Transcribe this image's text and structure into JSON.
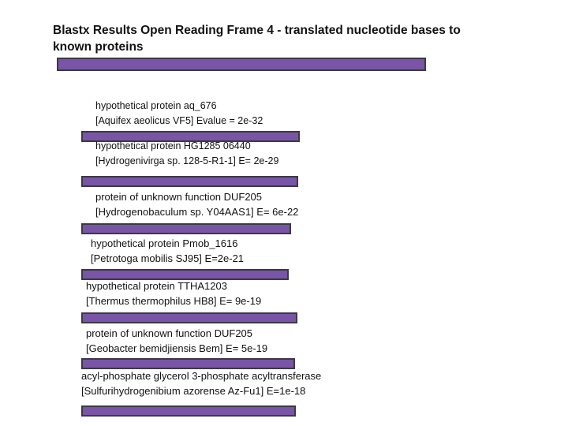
{
  "title": "Blastx Results Open Reading Frame 4 - translated nucleotide bases to known proteins",
  "colors": {
    "bar_fill": "#7a54a6",
    "bar_border": "#3a3a44"
  },
  "hits": [
    {
      "line1": "hypothetical protein aq_676",
      "line2": "[Aquifex aeolicus VF5] Evalue = 2e-32"
    },
    {
      "line1": "hypothetical protein HG1285 06440",
      "line2": "[Hydrogenivirga sp. 128-5-R1-1] E= 2e-29"
    },
    {
      "line1": "protein of unknown function DUF205",
      "line2": "[Hydrogenobaculum sp. Y04AAS1] E= 6e-22"
    },
    {
      "line1": "hypothetical protein Pmob_1616",
      "line2": "[Petrotoga mobilis SJ95] E=2e-21"
    },
    {
      "line1": "hypothetical protein TTHA1203",
      "line2": "[Thermus thermophilus HB8] E= 9e-19"
    },
    {
      "line1": "protein of unknown function DUF205",
      "line2": "[Geobacter bemidjiensis Bem] E= 5e-19"
    },
    {
      "line1": "acyl-phosphate glycerol 3-phosphate acyltransferase",
      "line2": "[Sulfurihydrogenibium azorense Az-Fu1] E=1e-18"
    }
  ]
}
